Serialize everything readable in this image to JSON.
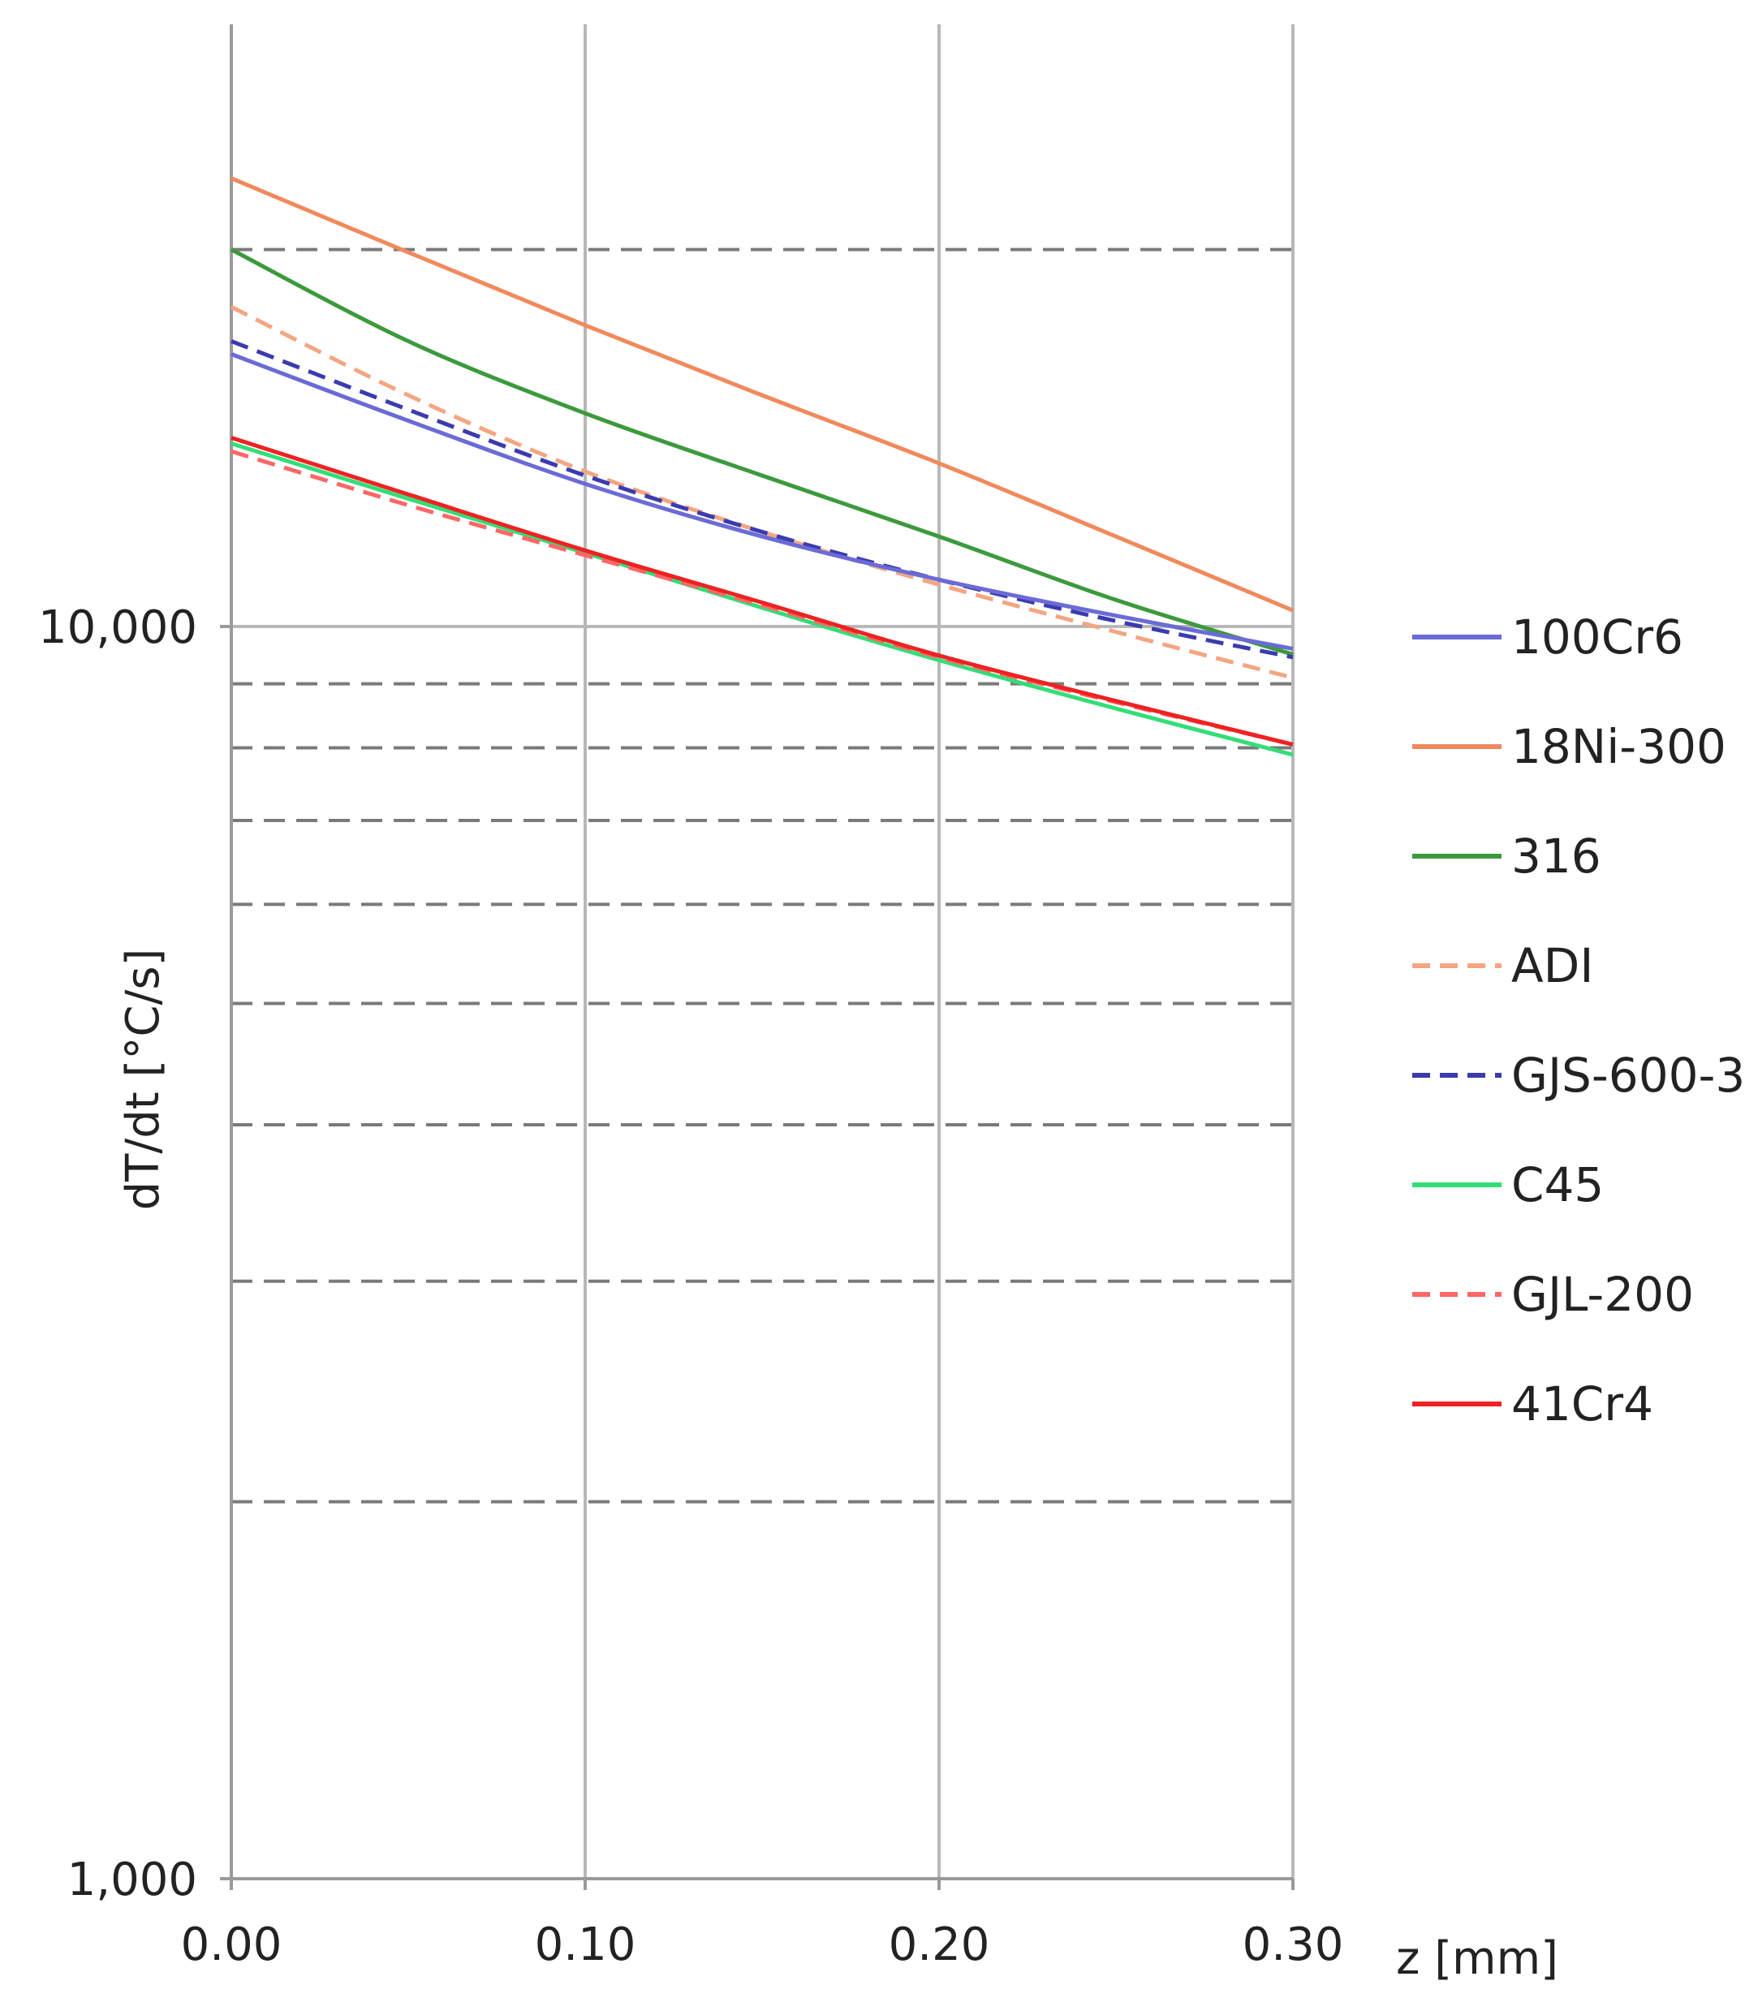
{
  "chart_data": {
    "type": "line",
    "title": "",
    "xlabel": "z [mm]",
    "ylabel": "dT/dt [°C/s]",
    "x_scale": "linear",
    "y_scale": "log",
    "xlim": [
      0.0,
      0.3
    ],
    "ylim": [
      1000,
      100000
    ],
    "x_ticks": [
      0.0,
      0.1,
      0.2,
      0.3
    ],
    "x_tick_labels": [
      "0.00",
      "0.10",
      "0.20",
      "0.30"
    ],
    "y_ticks": [
      1000,
      10000
    ],
    "y_tick_labels": [
      "1,000",
      "10,000"
    ],
    "grid": "solid vertical lines at x ticks and at y = 1,000 and 10,000; dashed horizontal minor lines at 2,000–9,000 and 20,000",
    "legend_position": "right",
    "x": [
      0.0,
      0.05,
      0.1,
      0.15,
      0.2,
      0.25,
      0.3
    ],
    "series": [
      {
        "name": "100Cr6",
        "color": "#6b6bd6",
        "dash": "solid",
        "values": [
          16500,
          14600,
          13000,
          11800,
          10900,
          10200,
          9600
        ]
      },
      {
        "name": "18Ni-300",
        "color": "#f08a5d",
        "dash": "solid",
        "values": [
          22800,
          19900,
          17400,
          15300,
          13500,
          11800,
          10300
        ]
      },
      {
        "name": "316",
        "color": "#3c9a3c",
        "dash": "solid",
        "values": [
          20000,
          16900,
          14800,
          13200,
          11800,
          10500,
          9500
        ]
      },
      {
        "name": "ADI",
        "color": "#f4a582",
        "dash": "dashed",
        "values": [
          18000,
          15300,
          13300,
          11900,
          10800,
          9900,
          9100
        ]
      },
      {
        "name": "GJS-600-3",
        "color": "#3b3bb0",
        "dash": "dashed",
        "values": [
          16900,
          14900,
          13200,
          11900,
          10900,
          10100,
          9450
        ]
      },
      {
        "name": "C45",
        "color": "#33dd77",
        "dash": "solid",
        "values": [
          14000,
          12650,
          11450,
          10350,
          9400,
          8600,
          7900
        ]
      },
      {
        "name": "GJL-200",
        "color": "#ff6666",
        "dash": "dashed",
        "values": [
          13800,
          12500,
          11400,
          10400,
          9450,
          8700,
          8050
        ]
      },
      {
        "name": "41Cr4",
        "color": "#ee2222",
        "dash": "solid",
        "values": [
          14150,
          12750,
          11500,
          10450,
          9480,
          8720,
          8050
        ]
      }
    ]
  }
}
